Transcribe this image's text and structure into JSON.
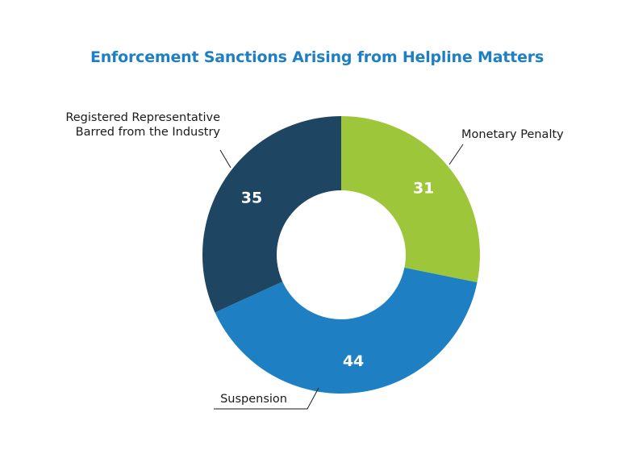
{
  "chart_data": {
    "type": "pie",
    "donut": true,
    "title": "Enforcement Sanctions Arising from Helpline Matters",
    "categories": [
      "Monetary Penalty",
      "Suspension",
      "Registered Representative Barred from the Industry"
    ],
    "label_lines": [
      [
        "Monetary Penalty"
      ],
      [
        "Suspension"
      ],
      [
        "Registered Representative",
        "Barred from the Industry"
      ]
    ],
    "values": [
      31,
      44,
      35
    ],
    "colors": [
      "#9dc63b",
      "#1e80c3",
      "#1e4662"
    ],
    "legend": "none"
  }
}
